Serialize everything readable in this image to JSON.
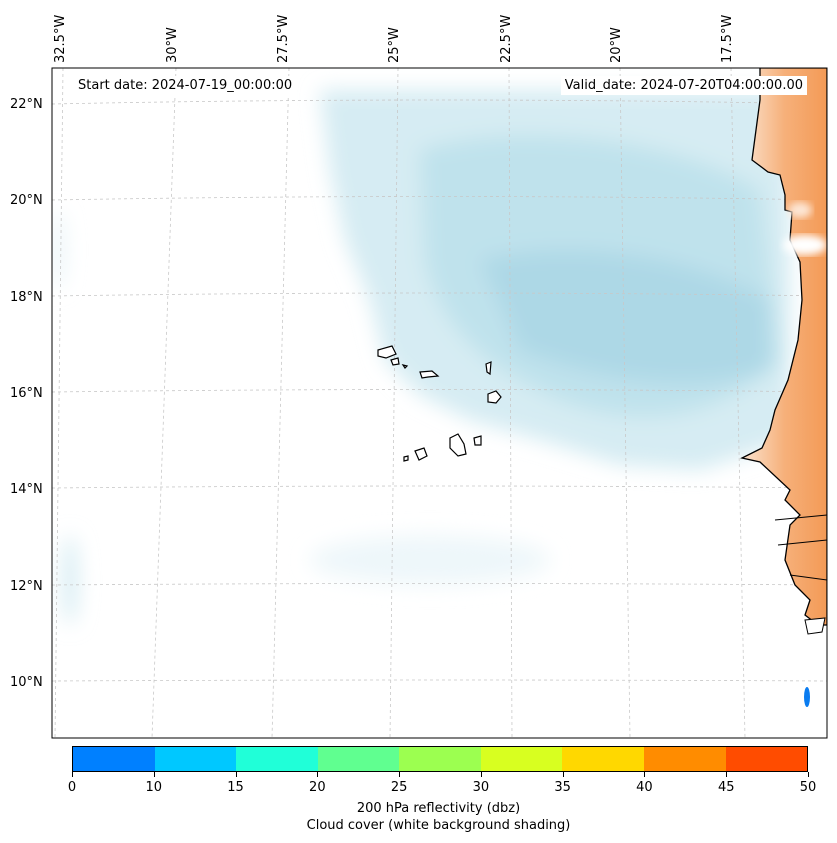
{
  "map": {
    "longitude_labels": [
      "32.5°W",
      "30°W",
      "27.5°W",
      "25°W",
      "22.5°W",
      "20°W",
      "17.5°W"
    ],
    "latitude_labels": [
      "22°N",
      "20°N",
      "18°N",
      "16°N",
      "14°N",
      "12°N",
      "10°N"
    ],
    "start_date": "Start date: 2024-07-19_00:00:00",
    "valid_date": "Valid_date: 2024-07-20T04:00:00.00"
  },
  "colorbar": {
    "colors": [
      "#0080ff",
      "#00c8ff",
      "#20ffd8",
      "#60ff90",
      "#9cff50",
      "#d8ff20",
      "#ffd800",
      "#ff8c00",
      "#ff4c00"
    ],
    "ticks": [
      "0",
      "10",
      "15",
      "20",
      "25",
      "30",
      "35",
      "40",
      "45",
      "50"
    ],
    "label": "200 hPa reflectivity (dbz)",
    "sublabel": "Cloud cover (white background shading)"
  },
  "colors": {
    "cloud": "#add8e6",
    "land_warm": "#f4a460",
    "coastline": "#000000",
    "grid": "#c8c8c8"
  }
}
